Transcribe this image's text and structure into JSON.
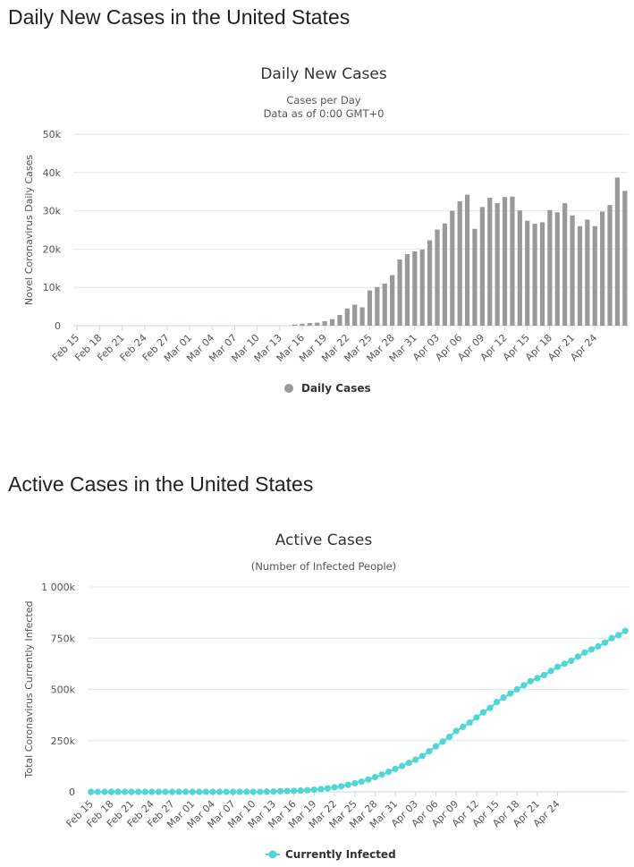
{
  "page": {
    "heading_daily": "Daily New Cases in the United States",
    "heading_active": "Active Cases in the United States"
  },
  "chart_data": [
    {
      "type": "bar",
      "title": "Daily New Cases",
      "subtitle_lines": [
        "Cases per Day",
        "Data as of 0:00 GMT+0"
      ],
      "ylabel": "Novel Coronavirus Daily Cases",
      "ylim": [
        0,
        50000
      ],
      "yticks": [
        0,
        10000,
        20000,
        30000,
        40000,
        50000
      ],
      "ytick_labels": [
        "0",
        "10k",
        "20k",
        "30k",
        "40k",
        "50k"
      ],
      "xtick_labels": [
        "Feb 15",
        "Feb 18",
        "Feb 21",
        "Feb 24",
        "Feb 27",
        "Mar 01",
        "Mar 04",
        "Mar 07",
        "Mar 10",
        "Mar 13",
        "Mar 16",
        "Mar 19",
        "Mar 22",
        "Mar 25",
        "Mar 28",
        "Mar 31",
        "Apr 03",
        "Apr 06",
        "Apr 09",
        "Apr 12",
        "Apr 15",
        "Apr 18",
        "Apr 21",
        "Apr 24"
      ],
      "grid": true,
      "legend_position": "bottom-center",
      "series": [
        {
          "name": "Daily Cases",
          "color": "#999999",
          "values": [
            0,
            0,
            0,
            0,
            0,
            0,
            0,
            0,
            0,
            0,
            0,
            0,
            0,
            0,
            0,
            0,
            0,
            0,
            0,
            0,
            0,
            0,
            0,
            0,
            0,
            0,
            0,
            0,
            0,
            300,
            500,
            700,
            800,
            1200,
            1700,
            2800,
            4500,
            5500,
            4800,
            9200,
            10100,
            11000,
            13200,
            17300,
            18700,
            19400,
            19900,
            22300,
            25100,
            26700,
            30000,
            32500,
            34200,
            25300,
            31000,
            33400,
            32000,
            33600,
            33700,
            30100,
            27400,
            26600,
            27000,
            30200,
            29600,
            32000,
            28800,
            26000,
            27700,
            26000,
            29800,
            31500,
            38700,
            35200
          ]
        }
      ]
    },
    {
      "type": "line",
      "title": "Active Cases",
      "subtitle_lines": [
        "(Number of Infected People)"
      ],
      "ylabel": "Total Coronavirus Currently Infected",
      "ylim": [
        0,
        1000000
      ],
      "yticks": [
        0,
        250000,
        500000,
        750000,
        1000000
      ],
      "ytick_labels": [
        "0",
        "250k",
        "500k",
        "750k",
        "1 000k"
      ],
      "xtick_labels": [
        "Feb 15",
        "Feb 18",
        "Feb 21",
        "Feb 24",
        "Feb 27",
        "Mar 01",
        "Mar 04",
        "Mar 07",
        "Mar 10",
        "Mar 13",
        "Mar 16",
        "Mar 19",
        "Mar 22",
        "Mar 25",
        "Mar 28",
        "Mar 31",
        "Apr 03",
        "Apr 06",
        "Apr 09",
        "Apr 12",
        "Apr 15",
        "Apr 18",
        "Apr 21",
        "Apr 24"
      ],
      "grid": true,
      "legend_position": "bottom-center",
      "series": [
        {
          "name": "Currently Infected",
          "color": "#50d6d6",
          "values": [
            0,
            0,
            0,
            0,
            0,
            0,
            0,
            0,
            0,
            0,
            0,
            0,
            0,
            0,
            0,
            0,
            0,
            0,
            0,
            0,
            0,
            0,
            0,
            0,
            0,
            0,
            1000,
            2000,
            3000,
            4000,
            5000,
            6000,
            8000,
            10000,
            13000,
            17000,
            22000,
            27000,
            34000,
            42000,
            50000,
            60000,
            72000,
            84000,
            98000,
            112000,
            126000,
            141000,
            157000,
            175000,
            198000,
            222000,
            245000,
            268000,
            297000,
            317000,
            338000,
            363000,
            388000,
            410000,
            438000,
            460000,
            480000,
            500000,
            520000,
            540000,
            555000,
            570000,
            590000,
            610000,
            625000,
            640000,
            660000,
            680000,
            695000,
            710000,
            728000,
            750000,
            765000,
            785000
          ]
        }
      ]
    }
  ]
}
